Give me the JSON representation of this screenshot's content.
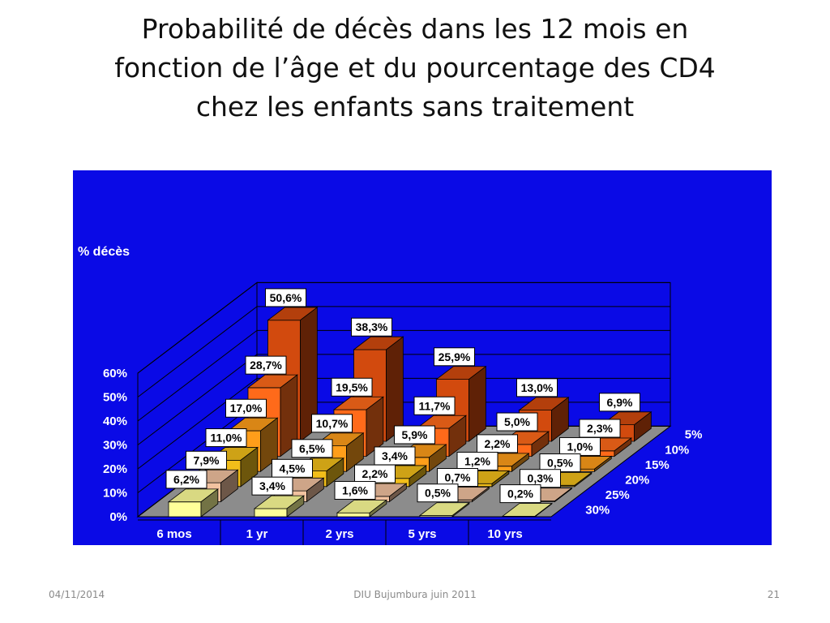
{
  "slide": {
    "title_lines": [
      "Probabilité de décès dans les 12 mois en",
      "fonction de l’âge et du pourcentage des CD4",
      "chez les enfants sans traitement"
    ],
    "footer": {
      "date": "04/11/2014",
      "center": "DIU Bujumbura juin 2011",
      "page": "21"
    }
  },
  "chart_data": {
    "type": "bar",
    "subtype": "3d-grouped-bar",
    "ylabel": "% décès",
    "y_ticks": [
      "0%",
      "10%",
      "20%",
      "30%",
      "40%",
      "50%",
      "60%"
    ],
    "ylim": [
      0,
      60
    ],
    "categories": [
      "6 mos",
      "1 yr",
      "2 yrs",
      "5 yrs",
      "10 yrs"
    ],
    "series": [
      {
        "name": "5%",
        "color": "#D24A0E",
        "values": [
          50.6,
          38.3,
          25.9,
          13.0,
          6.9
        ],
        "labels": [
          "50,6%",
          "38,3%",
          "25,9%",
          "13,0%",
          "6,9%"
        ]
      },
      {
        "name": "10%",
        "color": "#FF6A1A",
        "values": [
          28.7,
          19.5,
          11.7,
          5.0,
          2.3
        ],
        "labels": [
          "28,7%",
          "19,5%",
          "11,7%",
          "5,0%",
          "2,3%"
        ]
      },
      {
        "name": "15%",
        "color": "#FF9E1A",
        "values": [
          17.0,
          10.7,
          5.9,
          2.2,
          1.0
        ],
        "labels": [
          "17,0%",
          "10,7%",
          "5,9%",
          "2,2%",
          "1,0%"
        ]
      },
      {
        "name": "20%",
        "color": "#F2BE1A",
        "values": [
          11.0,
          6.5,
          3.4,
          1.2,
          0.5
        ],
        "labels": [
          "11,0%",
          "6,5%",
          "3,4%",
          "1,2%",
          "0,5%"
        ]
      },
      {
        "name": "25%",
        "color": "#F2C2A0",
        "values": [
          7.9,
          4.5,
          2.2,
          0.7,
          0.3
        ],
        "labels": [
          "7,9%",
          "4,5%",
          "2,2%",
          "0,7%",
          "0,3%"
        ]
      },
      {
        "name": "30%",
        "color": "#FFFF99",
        "values": [
          6.2,
          3.4,
          1.6,
          0.5,
          0.2
        ],
        "labels": [
          "6,2%",
          "3,4%",
          "1,6%",
          "0,5%",
          "0,2%"
        ]
      }
    ],
    "grid": true,
    "background": "#0A0AE6",
    "floor_color": "#8C8C8C"
  }
}
